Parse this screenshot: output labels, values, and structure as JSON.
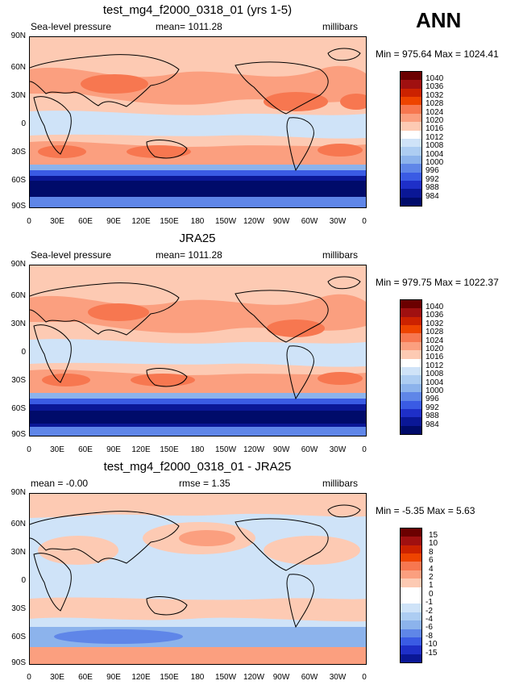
{
  "header": {
    "season": "ANN"
  },
  "panels": [
    {
      "title": "test_mg4_f2000_0318_01 (yrs 1-5)",
      "left_label": "Sea-level pressure",
      "center_label": "mean=  1011.28",
      "right_label": "millibars",
      "min_max": "Min = 975.64  Max = 1024.41",
      "colorbar_labels": [
        "1040",
        "1036",
        "1032",
        "1028",
        "1024",
        "1020",
        "1016",
        "1012",
        "1008",
        "1004",
        "1000",
        "996",
        "992",
        "988",
        "984"
      ]
    },
    {
      "title": "JRA25",
      "left_label": "Sea-level pressure",
      "center_label": "mean=  1011.28",
      "right_label": "millibars",
      "min_max": "Min = 979.75  Max = 1022.37",
      "colorbar_labels": [
        "1040",
        "1036",
        "1032",
        "1028",
        "1024",
        "1020",
        "1016",
        "1012",
        "1008",
        "1004",
        "1000",
        "996",
        "992",
        "988",
        "984"
      ]
    },
    {
      "title": "test_mg4_f2000_0318_01 - JRA25",
      "left_label": "mean =   -0.00",
      "center_label": "rmse =     1.35",
      "right_label": "millibars",
      "min_max": "Min =  -5.35  Max =    5.63",
      "colorbar_labels": [
        "15",
        "10",
        "8",
        "6",
        "4",
        "2",
        "1",
        "0",
        "-1",
        "-2",
        "-4",
        "-6",
        "-8",
        "-10",
        "-15"
      ]
    }
  ],
  "axes": {
    "lat_ticks": [
      "90N",
      "60N",
      "30N",
      "0",
      "30S",
      "60S",
      "90S"
    ],
    "lon_ticks": [
      "0",
      "30E",
      "60E",
      "90E",
      "120E",
      "150E",
      "180",
      "150W",
      "120W",
      "90W",
      "60W",
      "30W",
      "0"
    ]
  },
  "colors": {
    "abs_scale": [
      "#6b0000",
      "#a01010",
      "#cc2200",
      "#ee4400",
      "#f77750",
      "#fb9f7f",
      "#fdcab3",
      "#ffffff",
      "#cfe3f8",
      "#adcdf2",
      "#8cb3ec",
      "#5f86e8",
      "#3a5be4",
      "#1e2fc8",
      "#0a1796",
      "#000b6a"
    ],
    "diff_scale": [
      "#6b0000",
      "#a01010",
      "#cc2200",
      "#ee4400",
      "#f77750",
      "#fb9f7f",
      "#fdcab3",
      "#ffffff",
      "#ffffff",
      "#cfe3f8",
      "#adcdf2",
      "#8cb3ec",
      "#5f86e8",
      "#3a5be4",
      "#1e2fc8",
      "#0a1796"
    ]
  }
}
